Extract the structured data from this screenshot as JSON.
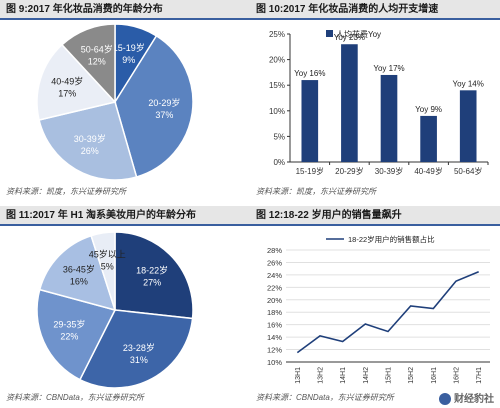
{
  "panels": [
    {
      "title": "图 9:2017 年化妆品消费的年龄分布",
      "source": "资料来源：凯度，东兴证券研究所"
    },
    {
      "title": "图 10:2017 年化妆品消费的人均开支增速",
      "source": "资料来源：凯度，东兴证券研究所"
    },
    {
      "title": "图 11:2017 年 H1 淘系美妆用户的年龄分布",
      "source": "资料来源：CBNData，东兴证券研究所"
    },
    {
      "title": "图 12:18-22 岁用户的销售量飙升",
      "source": "资料来源：CBNData，东兴证券研究所"
    }
  ],
  "watermark": "财经豹社",
  "chart_data": [
    {
      "type": "pie",
      "labels": [
        "15-19岁",
        "20-29岁",
        "30-39岁",
        "40-49岁",
        "50-64岁"
      ],
      "value_labels": [
        "9%",
        "37%",
        "26%",
        "17%",
        "12%"
      ],
      "values": [
        9,
        37,
        26,
        17,
        12
      ],
      "colors": [
        "#2a5ca8",
        "#5b83c0",
        "#a9bfe0",
        "#eaeef6",
        "#8a8a8a"
      ],
      "label_colors": [
        "#ffffff",
        "#ffffff",
        "#ffffff",
        "#222222",
        "#ffffff"
      ],
      "start_label": "12 o'clock, clockwise"
    },
    {
      "type": "bar",
      "categories": [
        "15-19岁",
        "20-29岁",
        "30-39岁",
        "40-49岁",
        "50-64岁"
      ],
      "values": [
        16,
        23,
        17,
        9,
        14
      ],
      "data_labels": [
        "Yoy 16%",
        "Yoy 23%",
        "Yoy 17%",
        "Yoy 9%",
        "Yoy 14%"
      ],
      "legend": "人均花费Yoy",
      "legend_placement": "top-left",
      "ylim": [
        0,
        25
      ],
      "yticks": [
        "0%",
        "5%",
        "10%",
        "15%",
        "20%",
        "25%"
      ],
      "ytick_values": [
        0,
        5,
        10,
        15,
        20,
        25
      ],
      "bar_color": "#1f3f7a"
    },
    {
      "type": "pie",
      "labels": [
        "18-22岁",
        "23-28岁",
        "29-35岁",
        "36-45岁",
        "45岁以上"
      ],
      "value_labels": [
        "27%",
        "31%",
        "22%",
        "16%",
        "5%"
      ],
      "values": [
        27,
        31,
        22,
        16,
        5
      ],
      "colors": [
        "#1f3f7a",
        "#3d65a8",
        "#6f93cc",
        "#a8bfe3",
        "#e8edf6"
      ],
      "label_colors": [
        "#ffffff",
        "#ffffff",
        "#ffffff",
        "#222222",
        "#222222"
      ],
      "start_label": "12 o'clock, clockwise"
    },
    {
      "type": "line",
      "categories": [
        "13H1",
        "13H2",
        "14H1",
        "14H2",
        "15H1",
        "15H2",
        "16H1",
        "16H2",
        "17H1"
      ],
      "values": [
        11.5,
        14.2,
        13.3,
        16.1,
        14.9,
        19.0,
        18.6,
        23.0,
        24.5
      ],
      "legend": "18-22岁用户的销售额占比",
      "legend_placement": "top-left",
      "ylim": [
        10,
        28
      ],
      "yticks": [
        "10%",
        "12%",
        "14%",
        "16%",
        "18%",
        "20%",
        "22%",
        "24%",
        "26%",
        "28%"
      ],
      "ytick_values": [
        10,
        12,
        14,
        16,
        18,
        20,
        22,
        24,
        26,
        28
      ],
      "grid": true,
      "line_color": "#1f3f7a"
    }
  ]
}
